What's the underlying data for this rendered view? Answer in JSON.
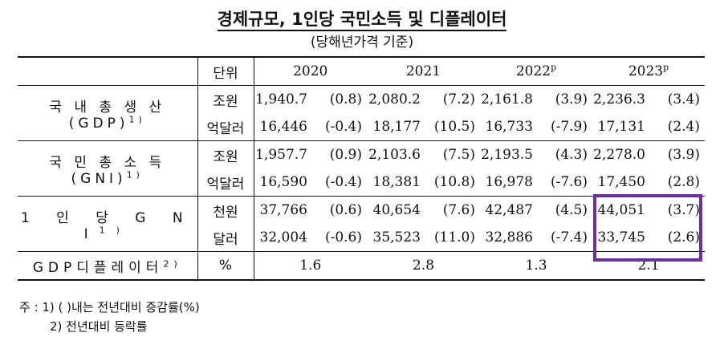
{
  "title": "경제규모, 1인당 국민소득 및 디플레이터",
  "subtitle": "(당해년가격 기준)",
  "header": {
    "unit": "단위",
    "years": [
      "2020",
      "2021",
      "2022",
      "2023"
    ],
    "year_sup": [
      "",
      "",
      "p",
      "p"
    ]
  },
  "groups": [
    {
      "label": "국 내 총 생 산 (GDP)",
      "label_sup": "1)",
      "rows": [
        {
          "unit": "조원",
          "cells": [
            [
              "1,940.7",
              "(0.8)"
            ],
            [
              "2,080.2",
              "(7.2)"
            ],
            [
              "2,161.8",
              "(3.9)"
            ],
            [
              "2,236.3",
              "(3.4)"
            ]
          ]
        },
        {
          "unit": "억달러",
          "cells": [
            [
              "16,446",
              "(-0.4)"
            ],
            [
              "18,177",
              "(10.5)"
            ],
            [
              "16,733",
              "(-7.9)"
            ],
            [
              "17,131",
              "(2.4)"
            ]
          ]
        }
      ]
    },
    {
      "label": "국 민 총 소 득 (GNI)",
      "label_sup": "1)",
      "rows": [
        {
          "unit": "조원",
          "cells": [
            [
              "1,957.7",
              "(0.9)"
            ],
            [
              "2,103.6",
              "(7.5)"
            ],
            [
              "2,193.5",
              "(4.3)"
            ],
            [
              "2,278.0",
              "(3.9)"
            ]
          ]
        },
        {
          "unit": "억달러",
          "cells": [
            [
              "16,590",
              "(-0.4)"
            ],
            [
              "18,381",
              "(10.8)"
            ],
            [
              "16,978",
              "(-7.6)"
            ],
            [
              "17,450",
              "(2.8)"
            ]
          ]
        }
      ]
    },
    {
      "label": "1 인 당 G N I",
      "label_sup": "1)",
      "rows": [
        {
          "unit": "천원",
          "cells": [
            [
              "37,766",
              "(0.6)"
            ],
            [
              "40,654",
              "(7.6)"
            ],
            [
              "42,487",
              "(4.5)"
            ],
            [
              "44,051",
              "(3.7)"
            ]
          ]
        },
        {
          "unit": "달러",
          "cells": [
            [
              "32,004",
              "(-0.6)"
            ],
            [
              "35,523",
              "(11.0)"
            ],
            [
              "32,886",
              "(-7.4)"
            ],
            [
              "33,745",
              "(2.6)"
            ]
          ]
        }
      ]
    }
  ],
  "deflator": {
    "label": "GDP디플레이터",
    "label_sup": "2)",
    "unit": "%",
    "values": [
      "1.6",
      "2.8",
      "1.3",
      "2.1"
    ]
  },
  "notes": {
    "line1": "주 : 1) (   )내는 전년대비 증감률(%)",
    "line2": "2) 전년대비 등락률"
  },
  "highlight_color": "#6b2fa0"
}
